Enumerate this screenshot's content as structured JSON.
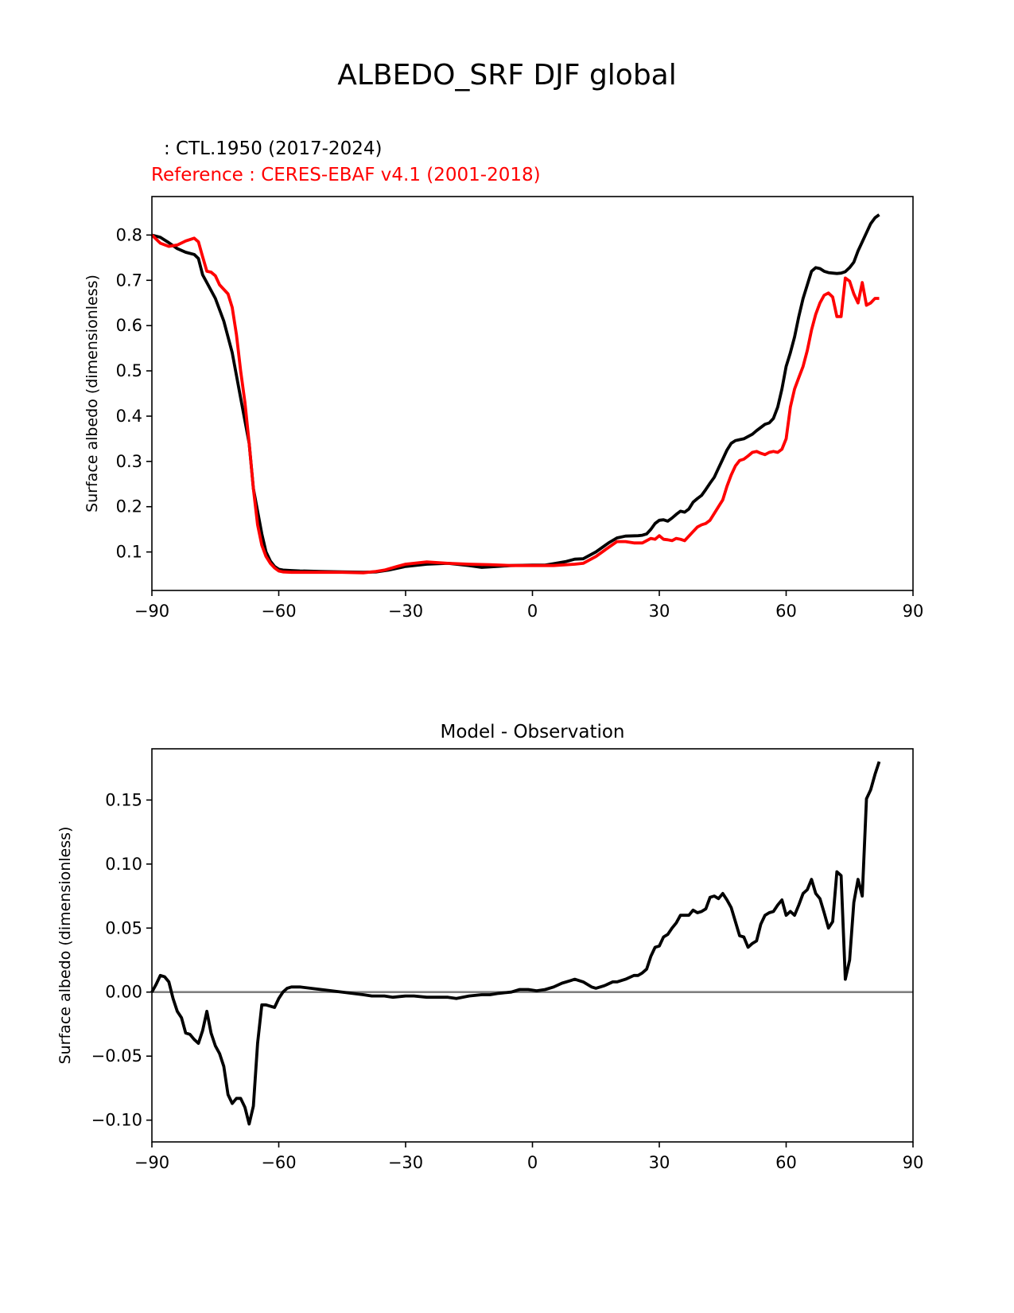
{
  "figure": {
    "suptitle": "ALBEDO_SRF DJF global",
    "legend_test": "   : CTL.1950 (2017-2024)",
    "legend_ref": "Reference : CERES-EBAF v4.1 (2001-2018)"
  },
  "colors": {
    "test": "#000000",
    "reference": "#ff0000",
    "zero_line": "#808080"
  },
  "chart_data": [
    {
      "type": "line",
      "title": "",
      "xlabel": "",
      "ylabel": "Surface albedo (dimensionless)",
      "xlim": [
        -90,
        90
      ],
      "ylim": [
        0.015,
        0.885
      ],
      "xticks": [
        -90,
        -60,
        -30,
        0,
        30,
        60,
        90
      ],
      "xtick_labels": [
        "−90",
        "−60",
        "−30",
        "0",
        "30",
        "60",
        "90"
      ],
      "yticks": [
        0.1,
        0.2,
        0.3,
        0.4,
        0.5,
        0.6,
        0.7,
        0.8
      ],
      "ytick_labels": [
        "0.1",
        "0.2",
        "0.3",
        "0.4",
        "0.5",
        "0.6",
        "0.7",
        "0.8"
      ],
      "series": [
        {
          "name": "CTL.1950 (2017-2024)",
          "color": "#000000",
          "x": [
            -90,
            -88,
            -86,
            -84,
            -82,
            -80,
            -79,
            -78,
            -77,
            -75,
            -73,
            -71,
            -69,
            -67,
            -66,
            -65,
            -64,
            -63,
            -62,
            -61,
            -60,
            -59,
            -57,
            -55,
            -50,
            -45,
            -40,
            -37,
            -34,
            -30,
            -25,
            -20,
            -15,
            -12,
            -10,
            -5,
            0,
            3,
            5,
            8,
            10,
            12,
            15,
            18,
            20,
            22,
            25,
            26,
            27,
            28,
            29,
            30,
            31,
            32,
            33,
            34,
            35,
            36,
            37,
            38,
            39,
            40,
            41,
            42,
            43,
            44,
            45,
            46,
            47,
            48,
            49,
            50,
            51,
            52,
            53,
            54,
            55,
            56,
            57,
            58,
            59,
            60,
            61,
            62,
            63,
            64,
            65,
            66,
            67,
            68,
            69,
            70,
            71,
            72,
            73,
            74,
            75,
            76,
            77,
            78,
            79,
            80,
            81,
            82
          ],
          "values": [
            0.8,
            0.795,
            0.783,
            0.77,
            0.762,
            0.757,
            0.748,
            0.712,
            0.695,
            0.66,
            0.61,
            0.54,
            0.44,
            0.34,
            0.24,
            0.19,
            0.14,
            0.1,
            0.08,
            0.068,
            0.062,
            0.06,
            0.059,
            0.058,
            0.057,
            0.056,
            0.055,
            0.056,
            0.06,
            0.068,
            0.073,
            0.075,
            0.07,
            0.066,
            0.067,
            0.07,
            0.071,
            0.071,
            0.074,
            0.079,
            0.084,
            0.085,
            0.1,
            0.12,
            0.131,
            0.135,
            0.136,
            0.137,
            0.14,
            0.15,
            0.163,
            0.17,
            0.171,
            0.168,
            0.175,
            0.183,
            0.19,
            0.188,
            0.195,
            0.21,
            0.218,
            0.225,
            0.238,
            0.252,
            0.265,
            0.285,
            0.305,
            0.325,
            0.34,
            0.346,
            0.348,
            0.35,
            0.355,
            0.36,
            0.368,
            0.375,
            0.382,
            0.385,
            0.395,
            0.42,
            0.46,
            0.51,
            0.54,
            0.575,
            0.62,
            0.66,
            0.69,
            0.72,
            0.728,
            0.726,
            0.72,
            0.717,
            0.716,
            0.715,
            0.716,
            0.719,
            0.728,
            0.74,
            0.765,
            0.785,
            0.805,
            0.825,
            0.838,
            0.845
          ]
        },
        {
          "name": "Reference : CERES-EBAF v4.1 (2001-2018)",
          "color": "#ff0000",
          "x": [
            -90,
            -88,
            -86,
            -84,
            -82,
            -80,
            -79,
            -78,
            -77,
            -76,
            -75,
            -74,
            -72,
            -71,
            -70,
            -69,
            -68,
            -67,
            -66,
            -65,
            -64,
            -63,
            -62,
            -61,
            -60,
            -59,
            -57,
            -55,
            -50,
            -45,
            -40,
            -37,
            -35,
            -32,
            -30,
            -25,
            -20,
            -15,
            -10,
            -5,
            0,
            5,
            10,
            12,
            15,
            18,
            20,
            22,
            24,
            26,
            27,
            28,
            29,
            30,
            31,
            32,
            33,
            34,
            35,
            36,
            37,
            38,
            39,
            40,
            41,
            42,
            43,
            44,
            45,
            46,
            47,
            48,
            49,
            50,
            51,
            52,
            53,
            54,
            55,
            56,
            57,
            58,
            59,
            60,
            61,
            62,
            63,
            64,
            65,
            66,
            67,
            68,
            69,
            70,
            71,
            72,
            73,
            74,
            75,
            76,
            77,
            78,
            79,
            80,
            81,
            82
          ],
          "values": [
            0.8,
            0.782,
            0.775,
            0.778,
            0.787,
            0.793,
            0.785,
            0.752,
            0.72,
            0.718,
            0.71,
            0.69,
            0.67,
            0.64,
            0.58,
            0.5,
            0.43,
            0.34,
            0.24,
            0.16,
            0.115,
            0.09,
            0.075,
            0.065,
            0.058,
            0.056,
            0.055,
            0.055,
            0.055,
            0.055,
            0.054,
            0.057,
            0.06,
            0.068,
            0.073,
            0.078,
            0.075,
            0.073,
            0.072,
            0.07,
            0.07,
            0.07,
            0.073,
            0.075,
            0.09,
            0.11,
            0.123,
            0.123,
            0.12,
            0.12,
            0.125,
            0.13,
            0.128,
            0.136,
            0.128,
            0.127,
            0.125,
            0.13,
            0.128,
            0.125,
            0.135,
            0.145,
            0.155,
            0.16,
            0.163,
            0.17,
            0.185,
            0.2,
            0.215,
            0.245,
            0.27,
            0.29,
            0.302,
            0.305,
            0.312,
            0.32,
            0.322,
            0.318,
            0.315,
            0.32,
            0.322,
            0.32,
            0.327,
            0.35,
            0.42,
            0.46,
            0.485,
            0.51,
            0.545,
            0.59,
            0.625,
            0.65,
            0.667,
            0.672,
            0.663,
            0.62,
            0.62,
            0.705,
            0.698,
            0.67,
            0.65,
            0.695,
            0.645,
            0.65,
            0.66,
            0.66
          ]
        }
      ]
    },
    {
      "type": "line",
      "title": "Model - Observation",
      "xlabel": "",
      "ylabel": "Surface albedo (dimensionless)",
      "xlim": [
        -90,
        90
      ],
      "ylim": [
        -0.117,
        0.19
      ],
      "xticks": [
        -90,
        -60,
        -30,
        0,
        30,
        60,
        90
      ],
      "xtick_labels": [
        "−90",
        "−60",
        "−30",
        "0",
        "30",
        "60",
        "90"
      ],
      "yticks": [
        -0.1,
        -0.05,
        0.0,
        0.05,
        0.1,
        0.15
      ],
      "ytick_labels": [
        "−0.10",
        "−0.05",
        "0.00",
        "0.05",
        "0.10",
        "0.15"
      ],
      "zero_line": 0.0,
      "series": [
        {
          "name": "Model - Observation",
          "color": "#000000",
          "x": [
            -90,
            -89,
            -88,
            -87,
            -86,
            -85,
            -84,
            -83,
            -82,
            -81,
            -80,
            -79,
            -78,
            -77,
            -76,
            -75,
            -74,
            -73,
            -72,
            -71,
            -70,
            -69,
            -68,
            -67,
            -66,
            -65,
            -64,
            -63,
            -62,
            -61,
            -60,
            -59,
            -58,
            -57,
            -55,
            -50,
            -45,
            -40,
            -38,
            -35,
            -33,
            -30,
            -28,
            -25,
            -22,
            -20,
            -18,
            -15,
            -12,
            -10,
            -8,
            -5,
            -3,
            -1,
            1,
            3,
            5,
            7,
            9,
            10,
            12,
            14,
            15,
            17,
            19,
            20,
            22,
            24,
            25,
            26,
            27,
            28,
            29,
            30,
            31,
            32,
            33,
            34,
            35,
            36,
            37,
            38,
            39,
            40,
            41,
            42,
            43,
            44,
            45,
            46,
            47,
            48,
            49,
            50,
            51,
            52,
            53,
            54,
            55,
            56,
            57,
            58,
            59,
            60,
            61,
            62,
            63,
            64,
            65,
            66,
            67,
            68,
            69,
            70,
            71,
            72,
            73,
            74,
            75,
            76,
            77,
            78,
            79,
            80,
            81,
            82
          ],
          "values": [
            0.0,
            0.006,
            0.013,
            0.012,
            0.008,
            -0.005,
            -0.015,
            -0.02,
            -0.032,
            -0.033,
            -0.037,
            -0.04,
            -0.03,
            -0.015,
            -0.032,
            -0.042,
            -0.048,
            -0.058,
            -0.08,
            -0.087,
            -0.083,
            -0.083,
            -0.09,
            -0.103,
            -0.089,
            -0.04,
            -0.01,
            -0.01,
            -0.011,
            -0.012,
            -0.005,
            0.0,
            0.003,
            0.004,
            0.004,
            0.002,
            0.0,
            -0.002,
            -0.003,
            -0.003,
            -0.004,
            -0.003,
            -0.003,
            -0.004,
            -0.004,
            -0.004,
            -0.005,
            -0.003,
            -0.002,
            -0.002,
            -0.001,
            0.0,
            0.002,
            0.002,
            0.001,
            0.002,
            0.004,
            0.007,
            0.009,
            0.01,
            0.008,
            0.004,
            0.003,
            0.005,
            0.008,
            0.008,
            0.01,
            0.013,
            0.013,
            0.015,
            0.018,
            0.028,
            0.035,
            0.036,
            0.043,
            0.045,
            0.05,
            0.054,
            0.06,
            0.06,
            0.06,
            0.064,
            0.062,
            0.063,
            0.065,
            0.074,
            0.075,
            0.073,
            0.077,
            0.072,
            0.066,
            0.055,
            0.044,
            0.043,
            0.035,
            0.038,
            0.04,
            0.053,
            0.06,
            0.062,
            0.063,
            0.068,
            0.072,
            0.06,
            0.063,
            0.06,
            0.068,
            0.077,
            0.08,
            0.088,
            0.077,
            0.073,
            0.062,
            0.05,
            0.055,
            0.094,
            0.091,
            0.01,
            0.025,
            0.07,
            0.088,
            0.075,
            0.151,
            0.158,
            0.17,
            0.18
          ]
        }
      ]
    }
  ]
}
